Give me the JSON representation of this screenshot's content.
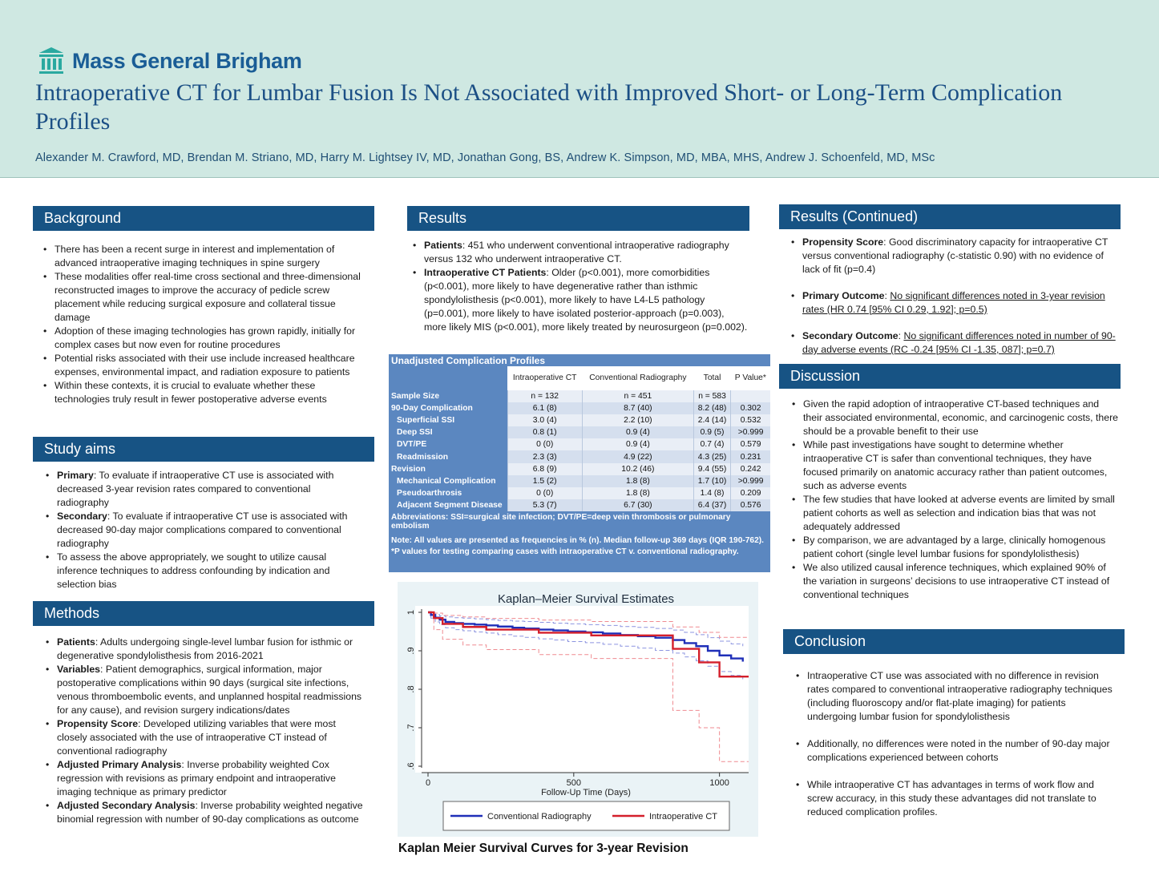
{
  "header": {
    "logo_text": "Mass General Brigham",
    "title": "Intraoperative CT for Lumbar Fusion Is Not Associated with Improved Short- or Long-Term Complication Profiles",
    "authors": "Alexander M. Crawford, MD, Brendan M. Striano, MD, Harry M. Lightsey IV, MD, Jonathan Gong, BS, Andrew K. Simpson, MD, MBA, MHS, Andrew J. Schoenfeld, MD, MSc",
    "accent_color": "#175384",
    "band_color": "#cfe8e2"
  },
  "background": {
    "heading": "Background",
    "items": [
      "There has been a recent surge in interest and implementation of advanced intraoperative imaging techniques in spine surgery",
      "These modalities offer real-time cross sectional and three-dimensional reconstructed images to improve the accuracy of pedicle screw placement while reducing surgical exposure and collateral tissue damage",
      "Adoption of these imaging technologies has grown rapidly, initially for complex cases but now even for routine procedures",
      "Potential risks associated with their use include increased healthcare expenses, environmental impact, and radiation exposure to patients",
      "Within these contexts, it is crucial to evaluate whether these technologies truly result in fewer postoperative adverse events"
    ]
  },
  "aims": {
    "heading": "Study aims",
    "items": [
      {
        "label": "Primary",
        "text": ": To evaluate if intraoperative CT use is associated with decreased 3-year revision rates compared to conventional radiography"
      },
      {
        "label": "Secondary",
        "text": ": To evaluate if intraoperative CT use is associated with decreased 90-day major complications compared to conventional radiography"
      },
      {
        "label": "",
        "text": "To assess the above appropriately, we sought to utilize causal inference techniques to address confounding by indication and selection bias"
      }
    ]
  },
  "methods": {
    "heading": "Methods",
    "items": [
      {
        "label": "Patients",
        "text": ": Adults undergoing single-level lumbar fusion for isthmic or degenerative spondylolisthesis from 2016-2021"
      },
      {
        "label": "Variables",
        "text": ": Patient demographics, surgical information, major postoperative complications within 90 days (surgical site infections, venous thromboembolic events, and unplanned hospital readmissions for any cause), and revision surgery indications/dates"
      },
      {
        "label": "Propensity Score",
        "text": ": Developed utilizing variables that were most closely associated with the use of intraoperative CT instead of conventional radiography"
      },
      {
        "label": "Adjusted Primary Analysis",
        "text": ": Inverse probability weighted Cox regression with revisions as primary endpoint and intraoperative imaging technique as primary predictor"
      },
      {
        "label": "Adjusted Secondary Analysis",
        "text": ": Inverse probability weighted negative binomial regression with number of 90-day complications as outcome"
      }
    ]
  },
  "results": {
    "heading": "Results",
    "items": [
      {
        "label": "Patients",
        "text": ": 451 who underwent conventional intraoperative radiography versus 132 who underwent intraoperative CT."
      },
      {
        "label": "Intraoperative CT Patients",
        "text": ": Older (p<0.001), more comorbidities (p<0.001), more likely to have degenerative rather than isthmic spondylolisthesis (p<0.001), more likely to have L4-L5 pathology (p=0.001), more likely to have isolated posterior-approach (p=0.003), more likely MIS (p<0.001), more likely treated by neurosurgeon (p=0.002)."
      }
    ]
  },
  "table": {
    "title": "Unadjusted Complication Profiles",
    "headers": [
      "",
      "Intraoperative CT",
      "Conventional Radiography",
      "Total",
      "P Value*"
    ],
    "rows": [
      {
        "label": "Sample Size",
        "sub": false,
        "cells": [
          "n = 132",
          "n = 451",
          "n = 583",
          ""
        ]
      },
      {
        "label": "90-Day Complication",
        "sub": false,
        "cells": [
          "6.1 (8)",
          "8.7 (40)",
          "8.2 (48)",
          "0.302"
        ]
      },
      {
        "label": "Superficial SSI",
        "sub": true,
        "cells": [
          "3.0 (4)",
          "2.2 (10)",
          "2.4 (14)",
          "0.532"
        ]
      },
      {
        "label": "Deep SSI",
        "sub": true,
        "cells": [
          "0.8 (1)",
          "0.9 (4)",
          "0.9 (5)",
          ">0.999"
        ]
      },
      {
        "label": "DVT/PE",
        "sub": true,
        "cells": [
          "0 (0)",
          "0.9 (4)",
          "0.7 (4)",
          "0.579"
        ]
      },
      {
        "label": "Readmission",
        "sub": true,
        "cells": [
          "2.3 (3)",
          "4.9 (22)",
          "4.3 (25)",
          "0.231"
        ]
      },
      {
        "label": "Revision",
        "sub": false,
        "cells": [
          "6.8 (9)",
          "10.2 (46)",
          "9.4 (55)",
          "0.242"
        ]
      },
      {
        "label": "Mechanical Complication",
        "sub": true,
        "cells": [
          "1.5 (2)",
          "1.8 (8)",
          "1.7 (10)",
          ">0.999"
        ]
      },
      {
        "label": "Pseudoarthrosis",
        "sub": true,
        "cells": [
          "0 (0)",
          "1.8 (8)",
          "1.4 (8)",
          "0.209"
        ]
      },
      {
        "label": "Adjacent Segment Disease",
        "sub": true,
        "cells": [
          "5.3 (7)",
          "6.7 (30)",
          "6.4 (37)",
          "0.576"
        ]
      }
    ],
    "abbreviations": "Abbreviations: SSI=surgical site infection; DVT/PE=deep vein thrombosis or pulmonary embolism",
    "note": "Note: All values are presented as frequencies in % (n). Median follow-up 369 days (IQR 190-762). *P values for testing comparing cases with intraoperative CT v. conventional radiography."
  },
  "chart_data": {
    "type": "line",
    "title": "Kaplan–Meier Survival Estimates",
    "xlabel": "Follow-Up Time (Days)",
    "ylabel": "",
    "xlim": [
      0,
      1100
    ],
    "ylim": [
      0.6,
      1.0
    ],
    "xticks": [
      "0",
      "500",
      "1000"
    ],
    "xtick_values": [
      0,
      500,
      1000
    ],
    "yticks": [
      ".6",
      ".7",
      ".8",
      ".9",
      "1"
    ],
    "ytick_values": [
      0.6,
      0.7,
      0.8,
      0.9,
      1.0
    ],
    "grid": false,
    "legend": "bottom",
    "caption": "Kaplan Meier Survival Curves for 3-year Revision",
    "series": [
      {
        "name": "Conventional Radiography",
        "color": "#1f2fb8",
        "x": [
          0,
          10,
          25,
          40,
          60,
          90,
          120,
          160,
          200,
          240,
          290,
          330,
          380,
          430,
          480,
          540,
          600,
          660,
          720,
          780,
          840,
          880,
          920,
          960,
          1000,
          1040,
          1080
        ],
        "y": [
          1.0,
          0.993,
          0.986,
          0.981,
          0.975,
          0.972,
          0.97,
          0.968,
          0.966,
          0.963,
          0.96,
          0.958,
          0.955,
          0.953,
          0.95,
          0.948,
          0.945,
          0.941,
          0.938,
          0.934,
          0.928,
          0.92,
          0.912,
          0.9,
          0.888,
          0.88,
          0.872
        ],
        "ci_low": [
          1.0,
          0.985,
          0.975,
          0.968,
          0.96,
          0.955,
          0.952,
          0.949,
          0.946,
          0.942,
          0.938,
          0.935,
          0.931,
          0.928,
          0.924,
          0.921,
          0.917,
          0.912,
          0.907,
          0.901,
          0.894,
          0.884,
          0.874,
          0.86,
          0.846,
          0.836,
          0.826
        ],
        "ci_high": [
          1.0,
          0.998,
          0.994,
          0.991,
          0.988,
          0.986,
          0.985,
          0.983,
          0.981,
          0.979,
          0.977,
          0.976,
          0.974,
          0.972,
          0.97,
          0.968,
          0.966,
          0.963,
          0.961,
          0.958,
          0.954,
          0.948,
          0.942,
          0.934,
          0.925,
          0.918,
          0.912
        ]
      },
      {
        "name": "Intraoperative CT",
        "color": "#d41f2b",
        "x": [
          0,
          20,
          50,
          120,
          200,
          290,
          380,
          470,
          560,
          650,
          740,
          840,
          880,
          930,
          1000,
          1100
        ],
        "y": [
          1.0,
          0.985,
          0.97,
          0.962,
          0.955,
          0.955,
          0.947,
          0.947,
          0.94,
          0.94,
          0.94,
          0.905,
          0.905,
          0.87,
          0.833,
          0.833
        ],
        "ci_low": [
          1.0,
          0.955,
          0.93,
          0.915,
          0.903,
          0.903,
          0.89,
          0.89,
          0.88,
          0.88,
          0.88,
          0.745,
          0.745,
          0.7,
          0.612,
          0.612
        ],
        "ci_high": [
          1.0,
          0.998,
          0.992,
          0.988,
          0.984,
          0.984,
          0.98,
          0.98,
          0.976,
          0.976,
          0.976,
          0.962,
          0.962,
          0.948,
          0.935,
          0.935
        ]
      }
    ]
  },
  "results_cont": {
    "heading": "Results (Continued)",
    "items": [
      {
        "label": "Propensity Score",
        "text": ": Good discriminatory capacity for intraoperative CT versus conventional radiography (c-statistic 0.90) with no evidence of lack of fit (p=0.4)",
        "underline": false
      },
      {
        "label": "Primary Outcome",
        "text": "No significant differences noted in 3-year revision rates (HR 0.74 [95% CI 0.29, 1.92]; p=0.5)",
        "underline": true
      },
      {
        "label": "Secondary Outcome",
        "text": "No significant differences noted in number of 90-day adverse events (RC -0.24 [95% CI -1.35, 087]; p=0.7)",
        "underline": true
      }
    ]
  },
  "discussion": {
    "heading": "Discussion",
    "items": [
      "Given the rapid adoption of intraoperative CT-based techniques and their associated environmental, economic, and carcinogenic costs, there should be a provable benefit to their use",
      "While past investigations have sought to determine whether intraoperative CT is safer than conventional techniques, they have focused primarily on anatomic accuracy rather than patient outcomes, such as adverse events",
      "The few studies that have looked at adverse events are limited by small patient cohorts as well as selection and indication bias that was not adequately addressed",
      "By comparison, we are advantaged by a large, clinically homogenous patient cohort (single level lumbar fusions for spondylolisthesis)",
      "We also utilized causal inference techniques, which explained 90% of the variation in surgeons’ decisions to use intraoperative CT instead of conventional techniques"
    ]
  },
  "conclusion": {
    "heading": "Conclusion",
    "items": [
      "Intraoperative CT use was associated with no difference in revision rates compared to conventional intraoperative radiography techniques (including fluoroscopy and/or flat-plate imaging) for patients undergoing lumbar fusion for spondylolisthesis",
      "Additionally, no differences were noted in the number of 90-day major complications experienced between cohorts",
      "While intraoperative CT has advantages in terms of work flow and screw accuracy,  in this study these advantages did not translate to reduced complication profiles."
    ]
  }
}
